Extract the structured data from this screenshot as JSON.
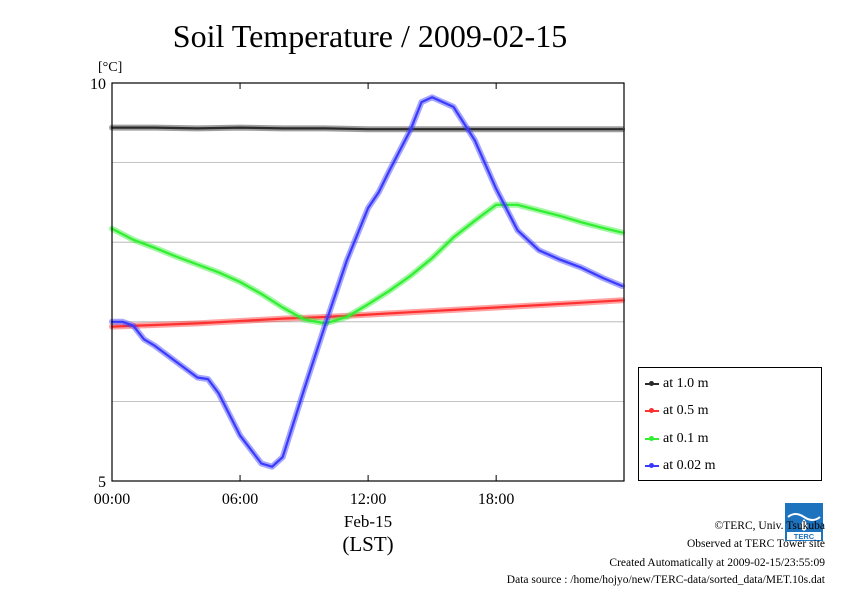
{
  "page": {
    "title": "Soil Temperature / 2009-02-15",
    "unit_label": "[°C]",
    "date_label": "Feb-15",
    "tz_label": "(LST)"
  },
  "credits": {
    "line1": "©TERC, Univ. Tsukuba",
    "line2": "Observed at TERC Tower site",
    "line3": "Created Automatically at 2009-02-15/23:55:09",
    "line4": "Data source : /home/hojyo/new/TERC-data/sorted_data/MET.10s.dat"
  },
  "logo": {
    "text": "TERC",
    "icon": "terc-logo-icon",
    "color": "#1e73be"
  },
  "chart_data": {
    "type": "line",
    "title": "Soil Temperature / 2009-02-15",
    "ylabel": "[°C]",
    "xlabel": "(LST)",
    "xlim": [
      0,
      23.99
    ],
    "ylim": [
      5,
      10
    ],
    "x_ticks": [
      {
        "x": 0,
        "label": "00:00"
      },
      {
        "x": 6,
        "label": "06:00"
      },
      {
        "x": 12,
        "label": "12:00"
      },
      {
        "x": 18,
        "label": "18:00"
      }
    ],
    "y_ticks": [
      {
        "y": 5,
        "label": "5"
      },
      {
        "y": 10,
        "label": "10"
      }
    ],
    "y_grid": [
      6,
      7,
      8,
      9
    ],
    "legend_position": "right",
    "series": [
      {
        "name": "at 1.0 m",
        "color": "#2a2a2a",
        "x": [
          0,
          2,
          4,
          6,
          8,
          10,
          12,
          14,
          16,
          18,
          20,
          22,
          23.9
        ],
        "y": [
          9.44,
          9.44,
          9.43,
          9.44,
          9.43,
          9.43,
          9.42,
          9.42,
          9.42,
          9.42,
          9.42,
          9.42,
          9.42
        ]
      },
      {
        "name": "at 0.5 m",
        "color": "#ff3030",
        "x": [
          0,
          2,
          4,
          6,
          8,
          10,
          12,
          14,
          16,
          18,
          20,
          22,
          23.9
        ],
        "y": [
          6.94,
          6.96,
          6.98,
          7.01,
          7.04,
          7.06,
          7.09,
          7.12,
          7.15,
          7.18,
          7.21,
          7.24,
          7.27
        ]
      },
      {
        "name": "at 0.1 m",
        "color": "#30ee30",
        "x": [
          0,
          1,
          2,
          3,
          4,
          5,
          6,
          7,
          8,
          9,
          10,
          11,
          12,
          13,
          14,
          15,
          16,
          17,
          18,
          19,
          20,
          21,
          22,
          23,
          23.9
        ],
        "y": [
          8.17,
          8.03,
          7.93,
          7.82,
          7.72,
          7.62,
          7.5,
          7.35,
          7.18,
          7.03,
          6.98,
          7.06,
          7.22,
          7.39,
          7.58,
          7.8,
          8.06,
          8.27,
          8.47,
          8.47,
          8.4,
          8.33,
          8.25,
          8.18,
          8.12
        ]
      },
      {
        "name": "at 0.02 m",
        "color": "#3a3aff",
        "x": [
          0,
          0.5,
          1,
          1.5,
          2,
          3,
          4,
          4.5,
          5,
          6,
          7,
          7.5,
          8,
          9,
          10,
          11,
          12,
          12.5,
          13,
          14,
          14.5,
          15,
          16,
          17,
          18,
          19,
          20,
          21,
          22,
          23,
          23.9
        ],
        "y": [
          7.0,
          7.0,
          6.95,
          6.78,
          6.7,
          6.5,
          6.3,
          6.28,
          6.1,
          5.57,
          5.22,
          5.18,
          5.3,
          6.15,
          6.97,
          7.77,
          8.43,
          8.63,
          8.9,
          9.42,
          9.76,
          9.82,
          9.7,
          9.28,
          8.67,
          8.15,
          7.9,
          7.78,
          7.68,
          7.55,
          7.45
        ]
      }
    ]
  }
}
